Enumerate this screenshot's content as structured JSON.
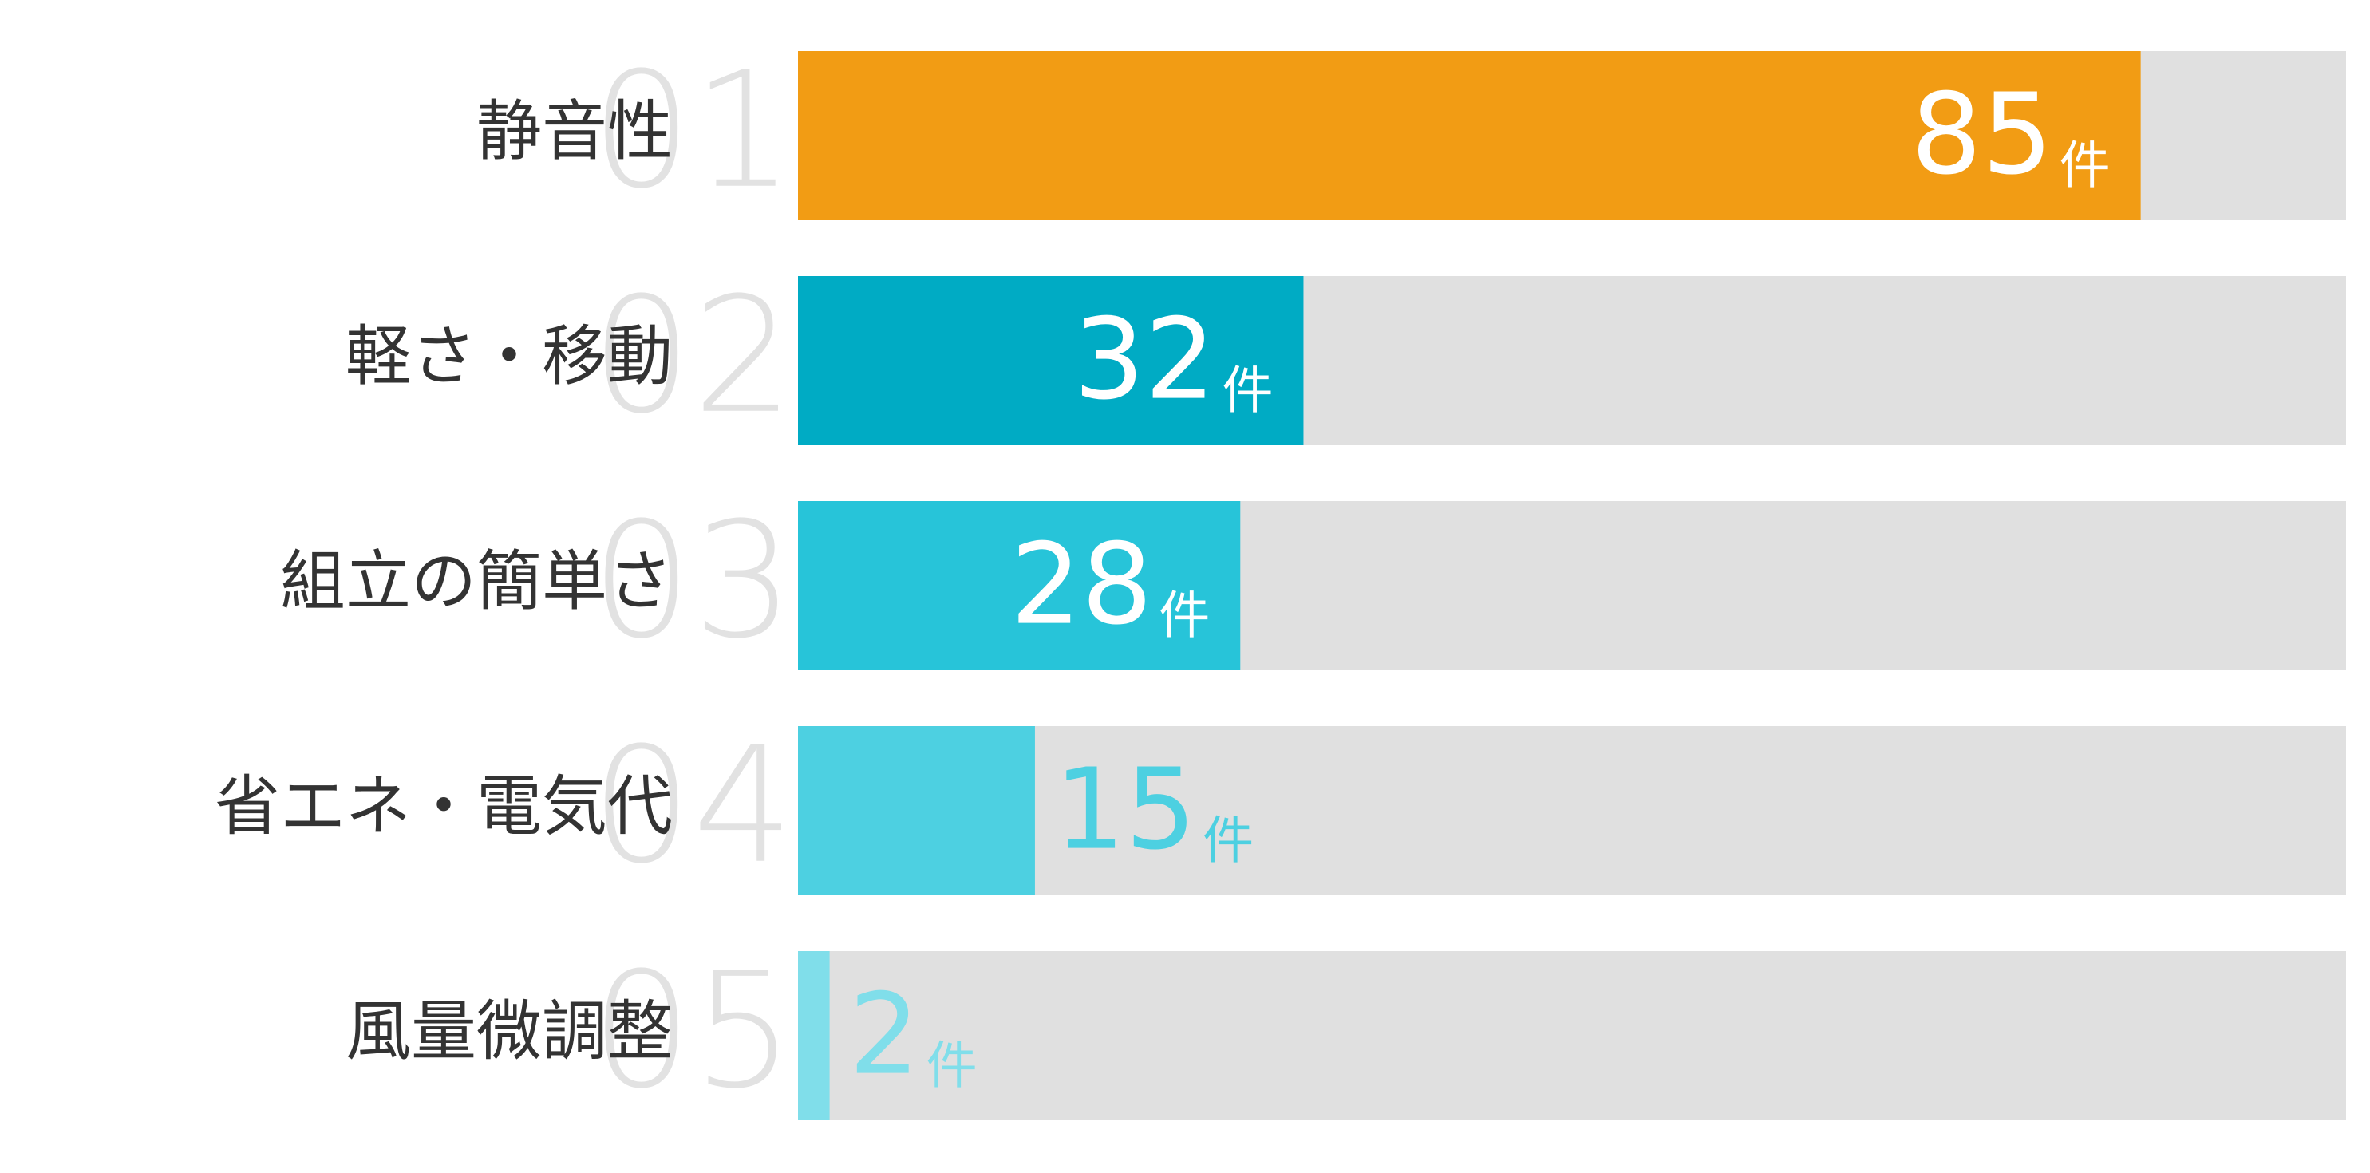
{
  "chart_data": {
    "type": "bar",
    "orientation": "horizontal",
    "categories": [
      "静音性",
      "軽さ・移動",
      "組立の簡単さ",
      "省エネ・電気代",
      "風量微調整"
    ],
    "ranks": [
      "01",
      "02",
      "03",
      "04",
      "05"
    ],
    "values": [
      85,
      32,
      28,
      15,
      2
    ],
    "unit": "件",
    "colors": [
      "#f29c14",
      "#00abc4",
      "#27c4d9",
      "#4dd0e1",
      "#80deea"
    ],
    "track_color": "#e0e0e0",
    "xlim": [
      0,
      98
    ]
  }
}
